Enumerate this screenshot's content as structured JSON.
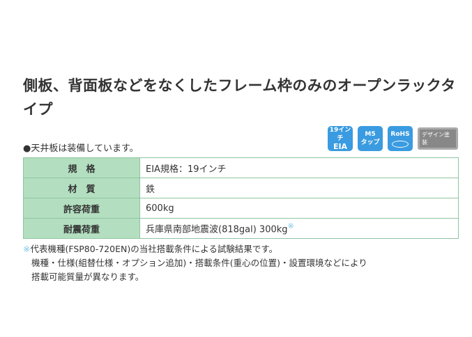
{
  "title": "側板、背面板などをなくしたフレーム枠のみのオープンラックタイプ",
  "note": "●天井板は装備しています。",
  "badges": [
    {
      "line1": "19インチ",
      "line2": "EIA",
      "color": "#3a9be0"
    },
    {
      "line1": "M5",
      "line2": "タップ",
      "color": "#3a9be0"
    },
    {
      "line1": "RoHS",
      "line2": "",
      "color": "#3a9be0"
    },
    {
      "line1": "デザイン塗装",
      "color": "#888888"
    }
  ],
  "spec": [
    {
      "label": "規　格",
      "value": "EIA規格：19インチ"
    },
    {
      "label": "材　質",
      "value": "鉄"
    },
    {
      "label": "許容荷重",
      "value": "600kg"
    },
    {
      "label": "耐震荷重",
      "value": "兵庫県南部地震波(818gal) 300kg",
      "mark": "※"
    }
  ],
  "footnote": {
    "mark": "※",
    "line1": "代表機種(FSP80-720EN)の当社搭載条件による試験結果です。",
    "line2": "機種・仕様(組替仕様・オプション追加)・搭載条件(重心の位置)・設置環境などにより",
    "line3": "搭載可能質量が異なります。"
  }
}
